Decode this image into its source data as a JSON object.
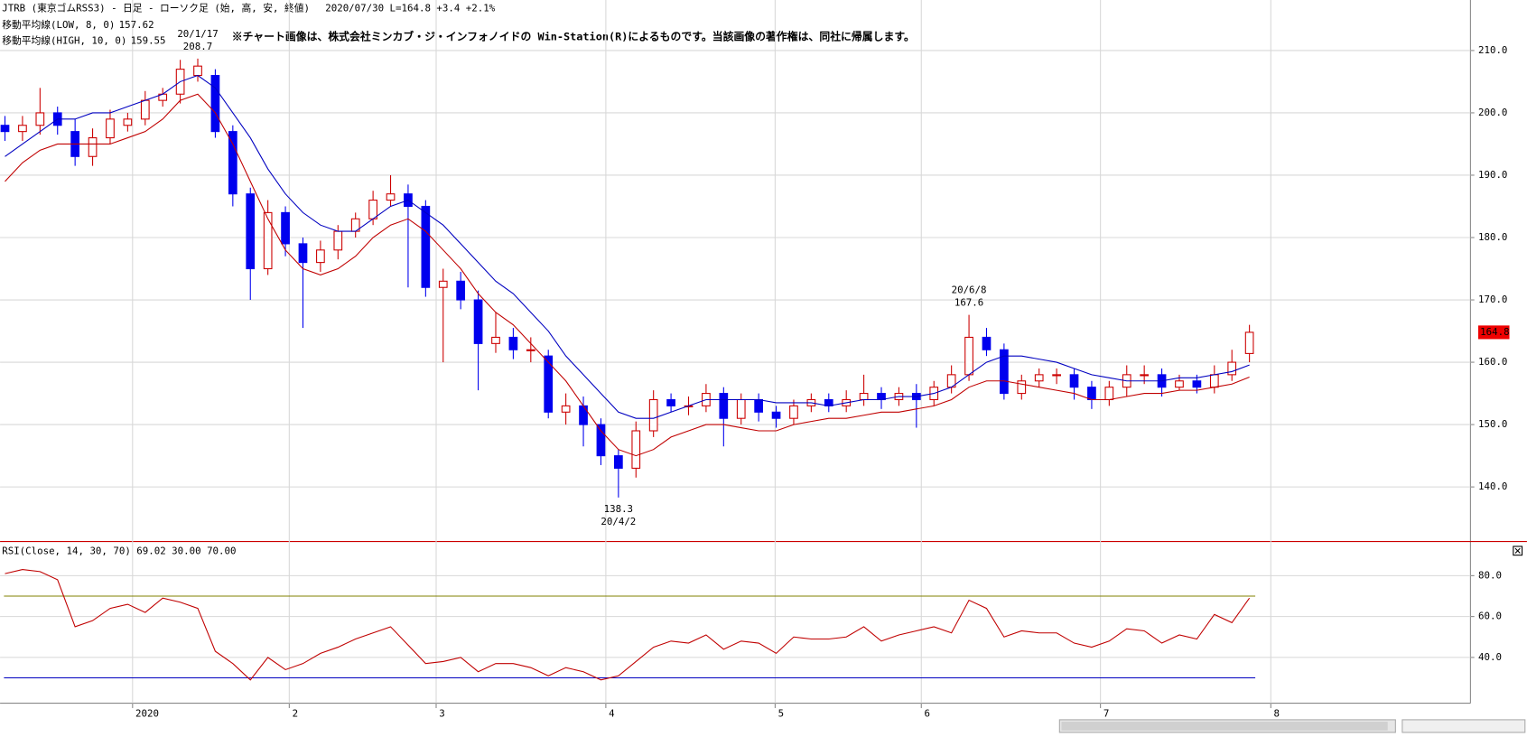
{
  "header": {
    "symbol": "JTRB (東京ゴムRSS3) - 日足 - ローソク足 (始, 高, 安, 終値)",
    "date": "2020/07/30",
    "last": "L=164.8",
    "change": "+3.4",
    "change_pct": "+2.1%",
    "note": "※チャート画像は、株式会社ミンカブ・ジ・インフォノイドの Win-Station(R)によるものです。当該画像の著作権は、同社に帰属します。"
  },
  "chart_data": [
    {
      "type": "candlestick",
      "up_color": "#cc0000",
      "down_color": "#0000ee",
      "xlim": [
        -0.28,
        83.61
      ],
      "ylim": [
        131.4,
        218.1
      ],
      "yticks": [
        {
          "value": 140,
          "label": "140.0"
        },
        {
          "value": 150,
          "label": "150.0"
        },
        {
          "value": 160,
          "label": "160.0"
        },
        {
          "value": 170,
          "label": "170.0"
        },
        {
          "value": 180,
          "label": "180.0"
        },
        {
          "value": 190,
          "label": "190.0"
        },
        {
          "value": 200,
          "label": "200.0"
        },
        {
          "value": 210,
          "label": "210.0"
        }
      ],
      "grid": true,
      "open": [
        198,
        197,
        198,
        200,
        197,
        193,
        196,
        198,
        199,
        202,
        203,
        206,
        206,
        197,
        187,
        175,
        184,
        179,
        176,
        178,
        181,
        183,
        186,
        187,
        185,
        172,
        173,
        170,
        163,
        164,
        162,
        161,
        152,
        153,
        150,
        145,
        143,
        149,
        154,
        153,
        153,
        155,
        151,
        154,
        152,
        151,
        153,
        154,
        153,
        154,
        155,
        154,
        155,
        154,
        156,
        158,
        164,
        162,
        155,
        157,
        158,
        158,
        156,
        154,
        156,
        158,
        158,
        156,
        157,
        156,
        158,
        161.4
      ],
      "high": [
        199.5,
        199.5,
        204,
        201,
        199,
        197.5,
        200.5,
        200,
        203.5,
        204,
        208.5,
        208.7,
        207,
        198,
        188,
        186,
        185,
        180,
        179.5,
        182,
        184,
        187.5,
        190,
        188.5,
        186,
        175,
        174.5,
        171.5,
        168,
        165.5,
        164,
        162,
        155,
        154.5,
        151,
        146,
        150.5,
        155.5,
        155,
        154.5,
        156.5,
        156,
        155,
        155,
        153,
        154,
        155,
        155,
        155.5,
        158,
        156,
        156,
        156.5,
        157,
        159.5,
        167.6,
        165.5,
        163,
        158,
        159,
        159,
        159,
        157,
        157,
        159.5,
        159.5,
        159,
        158,
        158,
        159.5,
        162,
        166
      ],
      "low": [
        195.5,
        195.5,
        196.5,
        196.5,
        191.5,
        191.5,
        195,
        197,
        198,
        201,
        201.5,
        205,
        196,
        185,
        170,
        174,
        177,
        165.5,
        174.5,
        176.5,
        180,
        182,
        185,
        172,
        170.5,
        160,
        168.5,
        155.5,
        161.5,
        160.5,
        160,
        151,
        150,
        146.5,
        143.5,
        138.3,
        141.5,
        148,
        152,
        151.5,
        152,
        146.5,
        150,
        150.5,
        149.5,
        150,
        152,
        152,
        152,
        153,
        152.5,
        153,
        149.5,
        153,
        155,
        157,
        161,
        154,
        154,
        156,
        156.5,
        154,
        152.5,
        153,
        154.5,
        156.5,
        154.5,
        155.5,
        155,
        155,
        157,
        160
      ],
      "close": [
        197,
        198,
        200,
        198,
        193,
        196,
        199,
        199,
        202,
        203,
        207,
        207.5,
        197,
        187,
        175,
        184,
        179,
        176,
        178,
        181,
        183,
        186,
        187,
        185,
        172,
        173,
        170,
        163,
        164,
        162,
        162,
        152,
        153,
        150,
        145,
        143,
        149,
        154,
        153,
        153,
        155,
        151,
        154,
        152,
        151,
        153,
        154,
        153,
        154,
        155,
        154,
        155,
        154,
        156,
        158,
        164,
        162,
        155,
        157,
        158,
        158,
        156,
        154,
        156,
        158,
        158,
        156,
        157,
        156,
        158,
        160,
        164.8
      ],
      "series": [
        {
          "name": "移動平均線(LOW, 8, 0)",
          "color": "#c00000",
          "values": [
            189,
            192,
            194,
            195,
            195,
            195,
            195,
            196,
            197,
            199,
            202,
            203,
            200,
            195,
            189,
            183,
            178,
            175,
            174,
            175,
            177,
            180,
            182,
            183,
            181,
            178,
            175,
            171,
            168,
            166,
            163,
            160,
            157,
            153,
            149,
            146,
            145,
            146,
            148,
            149,
            150,
            150,
            149.5,
            149,
            149,
            150,
            150.5,
            151,
            151,
            151.5,
            152,
            152,
            152.5,
            153,
            154,
            156,
            157,
            157,
            156.5,
            156,
            155.5,
            155,
            154,
            154,
            154.5,
            155,
            155,
            155.5,
            155.5,
            156,
            156.5,
            157.62
          ]
        },
        {
          "name": "移動平均線(HIGH, 10, 0)",
          "color": "#0000c0",
          "values": [
            193,
            195,
            197,
            199,
            199,
            200,
            200,
            201,
            202,
            203,
            205,
            206,
            204,
            200,
            196,
            191,
            187,
            184,
            182,
            181,
            181,
            183,
            185,
            186,
            184,
            182,
            179,
            176,
            173,
            171,
            168,
            165,
            161,
            158,
            155,
            152,
            151,
            151,
            152,
            153,
            154,
            154,
            154,
            154,
            153.5,
            153.5,
            153.5,
            153,
            153.5,
            154,
            154,
            154.5,
            154.5,
            155,
            156,
            158,
            160,
            161,
            161,
            160.5,
            160,
            159,
            158,
            157.5,
            157,
            157,
            157,
            157.5,
            157.5,
            158,
            158.5,
            159.55
          ]
        }
      ],
      "annotations": [
        {
          "date": "20/1/17",
          "price": 208.7,
          "kind": "high"
        },
        {
          "date": "20/6/8",
          "price": 167.6,
          "kind": "high"
        },
        {
          "date": "20/4/2",
          "price": 138.3,
          "kind": "low"
        }
      ]
    },
    {
      "type": "line",
      "name": "RSI(Close, 14, 30, 70)",
      "color": "#c00000",
      "xlim": [
        -0.28,
        83.61
      ],
      "ylim": [
        17.6,
        94.8
      ],
      "yticks": [
        {
          "value": 40,
          "label": "40.0"
        },
        {
          "value": 60,
          "label": "60.0"
        },
        {
          "value": 80,
          "label": "80.0"
        }
      ],
      "levels": [
        {
          "value": 30,
          "label": "30.00",
          "color": "#0000c0"
        },
        {
          "value": 70,
          "label": "70.00",
          "color": "#808000"
        }
      ],
      "xticks": [
        {
          "value": 7.28,
          "label": "2020"
        },
        {
          "value": 16.22,
          "label": "2"
        },
        {
          "value": 24.6,
          "label": "3"
        },
        {
          "value": 34.28,
          "label": "4"
        },
        {
          "value": 43.94,
          "label": "5"
        },
        {
          "value": 52.28,
          "label": "6"
        },
        {
          "value": 62.5,
          "label": "7"
        },
        {
          "value": 72.22,
          "label": "8"
        }
      ],
      "values": [
        81,
        83,
        82,
        78,
        55,
        58,
        64,
        66,
        62,
        69,
        67,
        64,
        43,
        37,
        29,
        40,
        34,
        37,
        42,
        45,
        49,
        52,
        55,
        46,
        37,
        38,
        40,
        33,
        37,
        37,
        35,
        31,
        35,
        33,
        29,
        31,
        38,
        45,
        48,
        47,
        51,
        44,
        48,
        47,
        42,
        50,
        49,
        49,
        50,
        55,
        48,
        51,
        53,
        55,
        52,
        68,
        64,
        50,
        53,
        52,
        52,
        47,
        45,
        48,
        54,
        53,
        47,
        51,
        49,
        61,
        57,
        69.02
      ]
    }
  ]
}
